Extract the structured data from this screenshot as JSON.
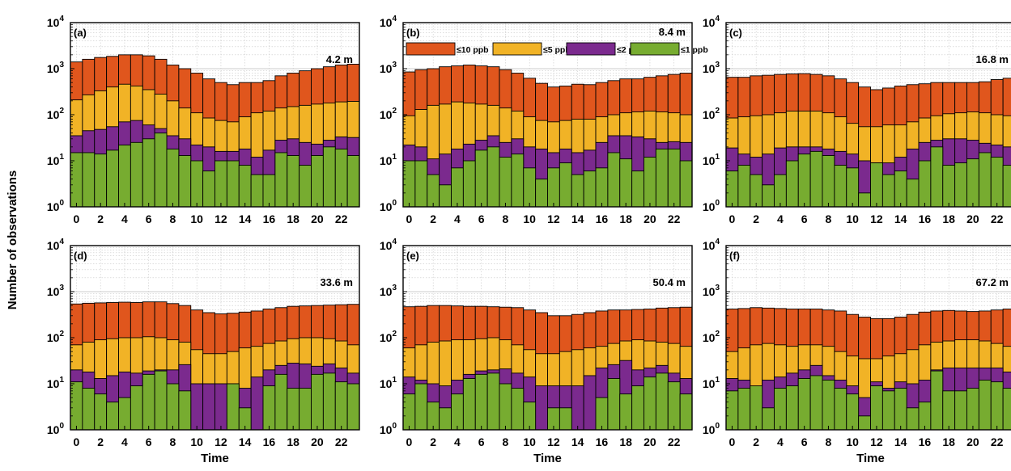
{
  "chart_data": {
    "type": "bar",
    "stacking": "overlaid",
    "yscale": "log",
    "ylim": [
      1,
      10000
    ],
    "xlim": [
      -0.5,
      23.5
    ],
    "ylabel": "Number of observations",
    "xlabel": "Time",
    "grid": true,
    "x_ticks": [
      0,
      2,
      4,
      6,
      8,
      10,
      12,
      14,
      16,
      18,
      20,
      22
    ],
    "y_tick_values": [
      1,
      10,
      100,
      1000,
      10000
    ],
    "y_tick_labels": [
      {
        "base": "10",
        "exp": "0"
      },
      {
        "base": "10",
        "exp": "1"
      },
      {
        "base": "10",
        "exp": "2"
      },
      {
        "base": "10",
        "exp": "3"
      },
      {
        "base": "10",
        "exp": "4"
      }
    ],
    "legend_location": "top, panel (b)",
    "legend": [
      {
        "label": "≤10 ppb",
        "color": "#e0561d"
      },
      {
        "label": "≤5 ppb",
        "color": "#f1b326"
      },
      {
        "label": "≤2 ppb",
        "color": "#7b2a8e"
      },
      {
        "label": "≤1 ppb",
        "color": "#77ac30"
      }
    ],
    "hours": [
      0,
      1,
      2,
      3,
      4,
      5,
      6,
      7,
      8,
      9,
      10,
      11,
      12,
      13,
      14,
      15,
      16,
      17,
      18,
      19,
      20,
      21,
      22,
      23
    ],
    "panels": [
      {
        "label": "(a)",
        "height": "4.2 m",
        "series": [
          {
            "name": "≤10 ppb",
            "values": [
              1400,
              1600,
              1750,
              1850,
              2000,
              2000,
              1900,
              1600,
              1200,
              1000,
              800,
              600,
              500,
              450,
              500,
              500,
              550,
              700,
              800,
              900,
              1000,
              1100,
              1200,
              1250
            ]
          },
          {
            "name": "≤5 ppb",
            "values": [
              210,
              270,
              330,
              400,
              460,
              420,
              350,
              280,
              200,
              140,
              110,
              85,
              75,
              70,
              90,
              110,
              120,
              140,
              150,
              160,
              170,
              180,
              190,
              195
            ]
          },
          {
            "name": "≤2 ppb",
            "values": [
              35,
              45,
              48,
              55,
              70,
              75,
              60,
              50,
              35,
              30,
              22,
              20,
              16,
              16,
              18,
              12,
              17,
              28,
              30,
              25,
              23,
              28,
              33,
              32
            ]
          },
          {
            "name": "≤1 ppb",
            "values": [
              15,
              15,
              14,
              17,
              22,
              25,
              30,
              40,
              18,
              13,
              10,
              6,
              10,
              10,
              8,
              5,
              5,
              15,
              13,
              8,
              13,
              20,
              18,
              13
            ]
          }
        ]
      },
      {
        "label": "(b)",
        "height": "8.4 m",
        "series": [
          {
            "name": "≤10 ppb",
            "values": [
              850,
              950,
              1000,
              1100,
              1150,
              1200,
              1150,
              1100,
              950,
              800,
              620,
              480,
              400,
              420,
              460,
              450,
              500,
              550,
              600,
              600,
              650,
              700,
              750,
              800
            ]
          },
          {
            "name": "≤5 ppb",
            "values": [
              95,
              130,
              160,
              170,
              190,
              180,
              170,
              160,
              140,
              120,
              90,
              75,
              70,
              75,
              80,
              80,
              90,
              100,
              110,
              115,
              120,
              115,
              110,
              100
            ]
          },
          {
            "name": "≤2 ppb",
            "values": [
              22,
              20,
              11,
              14,
              18,
              23,
              28,
              35,
              25,
              30,
              20,
              18,
              15,
              18,
              15,
              17,
              25,
              35,
              35,
              33,
              30,
              25,
              26,
              25
            ]
          },
          {
            "name": "≤1 ppb",
            "values": [
              10,
              10,
              5,
              3,
              7,
              10,
              17,
              20,
              12,
              14,
              7,
              4,
              7,
              9,
              5,
              6,
              7,
              15,
              11,
              6,
              12,
              18,
              18,
              10
            ]
          }
        ]
      },
      {
        "label": "(c)",
        "height": "16.8 m",
        "series": [
          {
            "name": "≤10 ppb",
            "values": [
              650,
              650,
              700,
              720,
              750,
              770,
              780,
              750,
              700,
              600,
              500,
              400,
              350,
              380,
              420,
              450,
              470,
              500,
              500,
              500,
              500,
              520,
              580,
              620
            ]
          },
          {
            "name": "≤5 ppb",
            "values": [
              85,
              90,
              95,
              100,
              110,
              120,
              120,
              120,
              110,
              90,
              65,
              55,
              55,
              60,
              60,
              70,
              85,
              95,
              105,
              110,
              115,
              110,
              100,
              95
            ]
          },
          {
            "name": "≤2 ppb",
            "values": [
              19,
              14,
              12,
              14,
              19,
              20,
              20,
              20,
              18,
              16,
              14,
              10,
              9,
              9,
              12,
              18,
              25,
              28,
              30,
              30,
              28,
              24,
              22,
              20
            ]
          },
          {
            "name": "≤1 ppb",
            "values": [
              6,
              8,
              5,
              3,
              5,
              10,
              14,
              16,
              13,
              8,
              7,
              2,
              9,
              5,
              6,
              4,
              10,
              20,
              8,
              9,
              11,
              15,
              12,
              8
            ]
          }
        ]
      },
      {
        "label": "(d)",
        "height": "33.6 m",
        "series": [
          {
            "name": "≤10 ppb",
            "values": [
              540,
              560,
              570,
              580,
              590,
              580,
              600,
              600,
              550,
              500,
              400,
              350,
              330,
              340,
              360,
              380,
              420,
              450,
              480,
              490,
              500,
              510,
              520,
              530
            ]
          },
          {
            "name": "≤5 ppb",
            "values": [
              70,
              80,
              90,
              95,
              100,
              100,
              105,
              100,
              90,
              80,
              55,
              45,
              45,
              50,
              60,
              65,
              75,
              85,
              95,
              100,
              100,
              95,
              85,
              70
            ]
          },
          {
            "name": "≤2 ppb",
            "values": [
              20,
              18,
              13,
              15,
              18,
              17,
              19,
              20,
              20,
              26,
              10,
              10,
              10,
              10,
              8,
              14,
              20,
              25,
              28,
              27,
              24,
              27,
              22,
              17
            ]
          },
          {
            "name": "≤1 ppb",
            "values": [
              11,
              8,
              6,
              4,
              5,
              9,
              16,
              19,
              10,
              7,
              1,
              1,
              1,
              10,
              3,
              1,
              9,
              16,
              8,
              8,
              16,
              17,
              11,
              10
            ]
          }
        ]
      },
      {
        "label": "(e)",
        "height": "50.4 m",
        "series": [
          {
            "name": "≤10 ppb",
            "values": [
              470,
              480,
              500,
              500,
              490,
              480,
              480,
              470,
              460,
              450,
              400,
              350,
              300,
              300,
              320,
              350,
              380,
              400,
              400,
              410,
              420,
              440,
              450,
              460
            ]
          },
          {
            "name": "≤5 ppb",
            "values": [
              60,
              70,
              80,
              85,
              90,
              90,
              95,
              100,
              90,
              70,
              55,
              45,
              45,
              50,
              55,
              60,
              65,
              75,
              85,
              90,
              85,
              80,
              75,
              65
            ]
          },
          {
            "name": "≤2 ppb",
            "values": [
              14,
              12,
              10,
              9,
              12,
              16,
              19,
              20,
              21,
              17,
              14,
              9,
              9,
              9,
              9,
              15,
              22,
              26,
              32,
              20,
              22,
              25,
              17,
              13
            ]
          },
          {
            "name": "≤1 ppb",
            "values": [
              6,
              10,
              4,
              3,
              6,
              13,
              16,
              17,
              10,
              8,
              4,
              1,
              3,
              3,
              1,
              1,
              5,
              13,
              6,
              9,
              14,
              17,
              11,
              6
            ]
          }
        ]
      },
      {
        "label": "(f)",
        "height": "67.2 m",
        "series": [
          {
            "name": "≤10 ppb",
            "values": [
              420,
              430,
              450,
              440,
              430,
              420,
              420,
              420,
              400,
              380,
              320,
              280,
              260,
              260,
              280,
              320,
              360,
              380,
              390,
              380,
              370,
              380,
              400,
              420
            ]
          },
          {
            "name": "≤5 ppb",
            "values": [
              50,
              60,
              70,
              75,
              70,
              65,
              70,
              70,
              65,
              50,
              40,
              35,
              35,
              40,
              45,
              55,
              70,
              80,
              85,
              90,
              90,
              85,
              75,
              65
            ]
          },
          {
            "name": "≤2 ppb",
            "values": [
              13,
              12,
              8,
              12,
              14,
              17,
              20,
              25,
              15,
              12,
              9,
              5,
              11,
              8,
              11,
              10,
              12,
              20,
              22,
              22,
              22,
              22,
              22,
              18
            ]
          },
          {
            "name": "≤1 ppb",
            "values": [
              7,
              8,
              9,
              3,
              8,
              9,
              13,
              15,
              12,
              8,
              6,
              2,
              9,
              7,
              8,
              3,
              4,
              19,
              7,
              7,
              8,
              12,
              11,
              8
            ]
          }
        ]
      }
    ]
  }
}
